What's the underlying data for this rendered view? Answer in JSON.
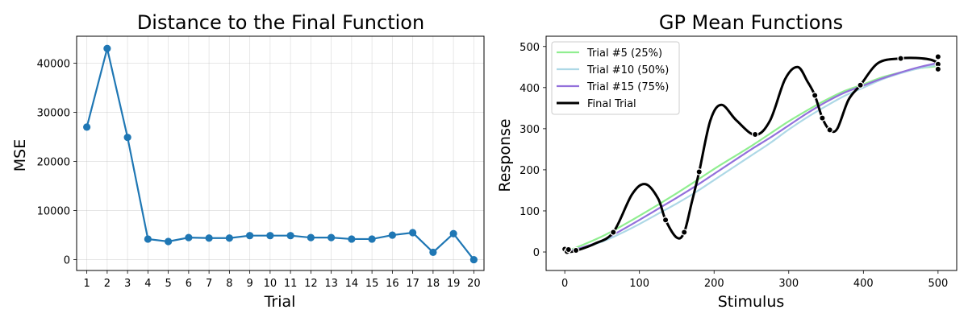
{
  "chart_data": [
    {
      "type": "line",
      "title": "Distance to the Final Function",
      "xlabel": "Trial",
      "ylabel": "MSE",
      "xlim": [
        0.5,
        20.5
      ],
      "ylim": [
        -2200,
        45500
      ],
      "x_ticks": [
        1,
        2,
        3,
        4,
        5,
        6,
        7,
        8,
        9,
        10,
        11,
        12,
        13,
        14,
        15,
        16,
        17,
        18,
        19,
        20
      ],
      "y_ticks": [
        0,
        10000,
        20000,
        30000,
        40000
      ],
      "grid": true,
      "color": "#1f77b4",
      "series": [
        {
          "x": [
            1,
            2,
            3,
            4,
            5,
            6,
            7,
            8,
            9,
            10,
            11,
            12,
            13,
            14,
            15,
            16,
            17,
            18,
            19,
            20
          ],
          "values": [
            27000,
            43000,
            24900,
            4200,
            3700,
            4500,
            4400,
            4400,
            4900,
            4900,
            4900,
            4500,
            4500,
            4200,
            4200,
            5000,
            5500,
            1500,
            5300,
            0
          ]
        }
      ]
    },
    {
      "type": "line",
      "title": "GP Mean Functions",
      "xlabel": "Stimulus",
      "ylabel": "Response",
      "xlim": [
        -25,
        525
      ],
      "ylim": [
        -45,
        525
      ],
      "x_ticks": [
        0,
        100,
        200,
        300,
        400,
        500
      ],
      "y_ticks": [
        0,
        100,
        200,
        300,
        400,
        500
      ],
      "grid": false,
      "legend_position": "top-left",
      "series": [
        {
          "name": "Trial #5 (25%)",
          "color": "#90ee90",
          "x": [
            0,
            25,
            50,
            75,
            100,
            125,
            150,
            175,
            200,
            225,
            250,
            275,
            300,
            325,
            350,
            375,
            400,
            425,
            450,
            475,
            500
          ],
          "values": [
            0,
            18,
            38,
            62,
            88,
            115,
            143,
            172,
            202,
            230,
            258,
            288,
            318,
            345,
            370,
            392,
            408,
            425,
            437,
            447,
            452
          ]
        },
        {
          "name": "Trial #10 (50%)",
          "color": "#add8e6",
          "x": [
            0,
            25,
            50,
            75,
            100,
            125,
            150,
            175,
            200,
            225,
            250,
            275,
            300,
            325,
            350,
            375,
            400,
            425,
            450,
            475,
            500
          ],
          "values": [
            0,
            10,
            25,
            45,
            68,
            93,
            118,
            145,
            175,
            205,
            235,
            265,
            298,
            328,
            355,
            380,
            400,
            420,
            435,
            447,
            455
          ]
        },
        {
          "name": "Trial #15 (75%)",
          "color": "#9370db",
          "x": [
            0,
            25,
            50,
            75,
            100,
            125,
            150,
            175,
            200,
            225,
            250,
            275,
            300,
            325,
            350,
            375,
            400,
            425,
            450,
            475,
            500
          ],
          "values": [
            0,
            12,
            28,
            52,
            78,
            105,
            132,
            160,
            190,
            220,
            250,
            278,
            308,
            338,
            365,
            388,
            405,
            422,
            437,
            450,
            460
          ]
        },
        {
          "name": "Final Trial",
          "color": "#000000",
          "x": [
            0,
            5,
            15,
            40,
            65,
            90,
            108,
            125,
            135,
            150,
            160,
            170,
            180,
            195,
            210,
            230,
            255,
            275,
            295,
            312,
            325,
            335,
            345,
            355,
            365,
            380,
            396,
            420,
            450,
            470,
            490,
            500
          ],
          "values": [
            0,
            0,
            3,
            20,
            48,
            140,
            165,
            130,
            78,
            35,
            48,
            120,
            195,
            320,
            358,
            320,
            285,
            320,
            420,
            450,
            415,
            381,
            326,
            297,
            300,
            370,
            406,
            460,
            471,
            472,
            468,
            460
          ]
        }
      ],
      "observations": {
        "x": [
          0,
          3,
          5,
          15,
          65,
          135,
          160,
          180,
          255,
          335,
          345,
          355,
          396,
          450,
          500,
          500,
          500
        ],
        "y": [
          7,
          1,
          6,
          4,
          48,
          78,
          48,
          195,
          286,
          381,
          326,
          297,
          406,
          471,
          475,
          457,
          445
        ]
      }
    }
  ]
}
